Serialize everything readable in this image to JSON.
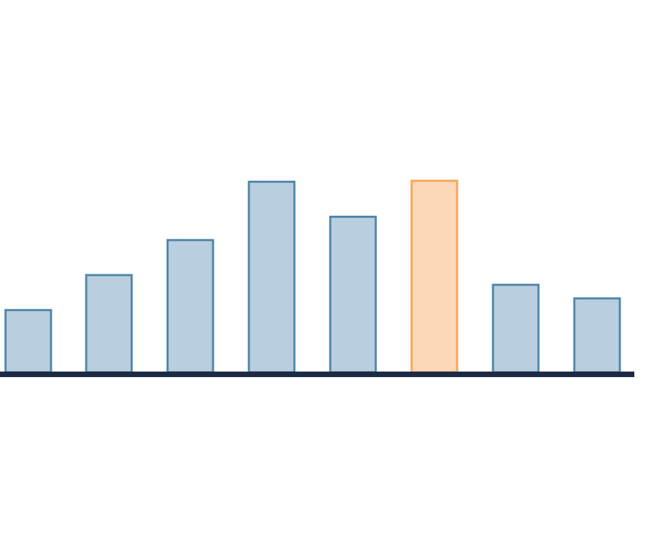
{
  "chart_data": {
    "type": "bar",
    "categories": [
      "",
      "",
      "",
      "",
      "",
      "",
      "",
      ""
    ],
    "values": [
      32,
      50,
      68,
      98,
      80,
      98.5,
      45,
      38
    ],
    "highlight_index": 5,
    "title": "",
    "xlabel": "",
    "ylabel": "",
    "ylim": [
      0,
      100
    ],
    "grid": false,
    "legend": "none",
    "colors": {
      "bar_fill": "#b9cede",
      "bar_stroke": "#4f84a8",
      "highlight_fill": "#fdd8b8",
      "highlight_stroke": "#f9a55b",
      "baseline": "#1c2a44",
      "background": "#ffffff"
    }
  }
}
